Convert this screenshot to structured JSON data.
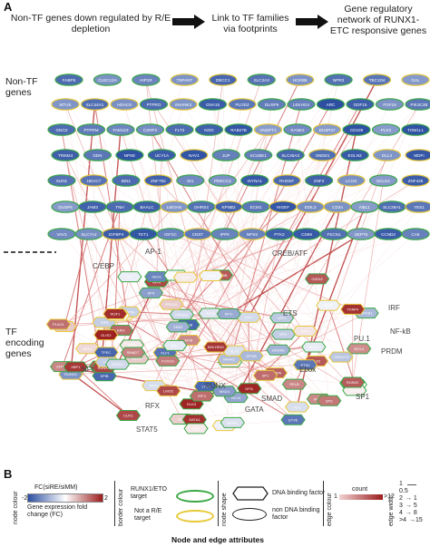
{
  "panelA": {
    "letter": "A",
    "step1": "Non-TF genes down regulated by R/E depletion",
    "step2": "Link to TF families via footprints",
    "step3": "Gene regulatory network of RUNX1-ETC responsive genes",
    "nonTF_label": "Non-TF genes",
    "tf_label": "TF encoding genes",
    "family_labels": [
      "C/EBP",
      "AP-1",
      "CREB/ATF",
      "IRF",
      "NF-kB",
      "PU.1",
      "PRDM",
      "ETS",
      "RFX",
      "SMAD",
      "STAT5",
      "SP1",
      "NFI",
      "RUNX",
      "Ebox",
      "GATA"
    ],
    "nonTF_rows": [
      [
        "FABP5",
        "CLEC12A",
        "HIP1R",
        "TSPAN7",
        "DBCC1",
        "SLC2A3",
        "HOXB5",
        "NPR3",
        "TBC1D4",
        "GAL"
      ],
      [
        "MTUS",
        "SLC44A1",
        "HDAC9",
        "PTPRO",
        "SHANK3",
        "GNA15",
        "PLOD2",
        "DUSP9",
        "LEKHG4",
        "ARC",
        "GDF15",
        "FGF16",
        "PIK3C2B"
      ],
      [
        "GNG2",
        "PTPRM",
        "FAM123",
        "CSRP2",
        "FLT3",
        "NOG",
        "RAB27B",
        "ANGPT1",
        "KANK2",
        "DUSP27",
        "CD109",
        "PLK3",
        "TOM1L1"
      ],
      [
        "TRIM24",
        "DDN",
        "NPSE",
        "UCY1A",
        "NAV1",
        "JUP",
        "SCUBE1",
        "SLC45A3",
        "SNDD1",
        "EGLN3",
        "DLL3",
        "MDFI"
      ],
      [
        "SUN1",
        "HDAC7",
        "BIN1",
        "ZNF782",
        "ID1",
        "PDECC3",
        "ISYNA1",
        "RHGEF",
        "ZNF2",
        "LCOS",
        "SCLSA",
        "ZNF436"
      ],
      [
        "DUSP6",
        "JAM3",
        "TNH",
        "BAALC",
        "LMOAN",
        "DHRS3",
        "KPNB2",
        "ECM1",
        "HIGEF",
        "EDIL3",
        "CD34",
        "NBL1",
        "SLC28A1",
        "YES1"
      ],
      [
        "VAV3",
        "SLC7A2",
        "IGFBP4",
        "TET1",
        "IGF2C",
        "CNST",
        "IPPK",
        "NPSS",
        "PTK2",
        "CD69",
        "FSCN1",
        "SEPT6",
        "CCND2",
        "CA6"
      ]
    ],
    "tf_nodes": [
      "NFE2",
      "CEBPA",
      "CEBPB",
      "CEBPE",
      "MAF",
      "JUN",
      "FOSB",
      "ATF3",
      "CREB3L",
      "IRF8",
      "IRF9",
      "NFKB1",
      "RELB",
      "SPI1",
      "SPIB",
      "PRDM1",
      "ETV6",
      "ELF1",
      "ERG",
      "FLI1",
      "RFX2",
      "RFX5",
      "SMAD3",
      "SMAD7",
      "STAT5A",
      "STAT5B",
      "SP1",
      "KLF1",
      "KLF2",
      "NFIA",
      "NFIX",
      "RUNX1",
      "RUNX3",
      "TAL1",
      "LYL1",
      "TCF4",
      "GATA1",
      "GATA2",
      "TFAP4",
      "EGR1",
      "MYB",
      "LMO2",
      "BCL6",
      "HES1",
      "HLF",
      "MEIS1",
      "POU2F2",
      "SOX4",
      "ZFPM1",
      "IKZF1",
      "IKZF3",
      "LEF1",
      "HOXA9",
      "HOXB4",
      "ID2",
      "NR4A1",
      "NR4A2",
      "KLF9",
      "KLF13",
      "TCF7",
      "ERF",
      "ELK3",
      "ETS2",
      "MXD4",
      "MYC",
      "BHLHE40",
      "ZEB2",
      "FOXO3",
      "TFEC",
      "NFIL3",
      "XBP1",
      "CUX1",
      "TGIF",
      "IRF4",
      "RUNX2",
      "SPI1B",
      "GFI1",
      "CBFA2T3",
      "SATB1",
      "PLAG1",
      "GLIS2",
      "SP3",
      "SP4",
      "ATF5"
    ]
  },
  "panelB": {
    "letter": "B",
    "node_colour_title": "node colour",
    "fc_title": "FC(siRE/siMM)",
    "fc_min": "-2",
    "fc_max": "2",
    "fc_caption": "Gene expression fold change (FC)",
    "border_colour_title": "border colour",
    "border1_label": "RUNX1/ETO target",
    "border2_label": "Not a R/E target",
    "node_shape_title": "node shape",
    "shape1_label": "DNA binding factor",
    "shape2_label": "non DNA binding factor",
    "edge_colour_title": "edge colour",
    "count_label": "count",
    "count_min": "1",
    "count_max": ">12",
    "edge_width_title": "edge width",
    "edge_widths": [
      "1",
      "0.5",
      "2",
      "3",
      "4",
      ">4"
    ],
    "edge_width_values": [
      "",
      "",
      "→ 1",
      "→ 5",
      "→ 8",
      "→15"
    ],
    "caption": "Node and edge attributes",
    "colors": {
      "blue": "#2b4fa2",
      "red": "#9b1c1c",
      "green": "#3aa845",
      "yellow": "#e8c93a"
    }
  }
}
